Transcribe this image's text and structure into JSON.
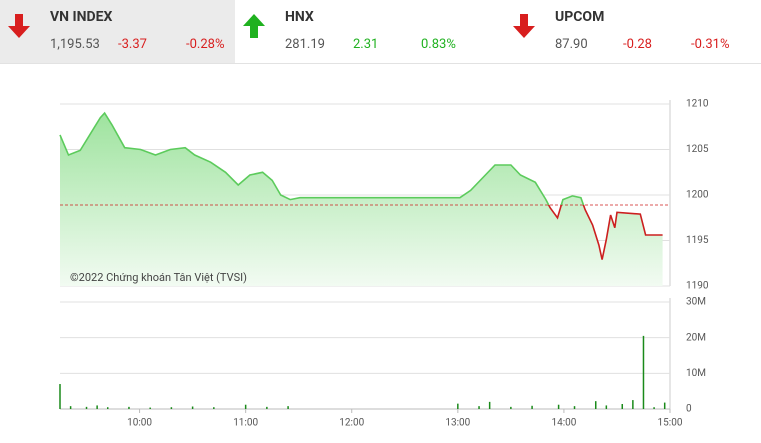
{
  "header": {
    "items": [
      {
        "name": "VN INDEX",
        "price": "1,195.53",
        "change": "-3.37",
        "percent": "-0.28%",
        "direction": "down"
      },
      {
        "name": "HNX",
        "price": "281.19",
        "change": "2.31",
        "percent": "0.83%",
        "direction": "up"
      },
      {
        "name": "UPCOM",
        "price": "87.90",
        "change": "-0.28",
        "percent": "-0.31%",
        "direction": "down"
      }
    ]
  },
  "chart_data": [
    {
      "type": "line",
      "annotation": "©2022 Chứng khoán Tân Việt (TVSI)",
      "reference": 1198.9,
      "x": [
        9.25,
        9.33,
        9.44,
        9.53,
        9.63,
        9.67,
        9.74,
        9.86,
        10.01,
        10.15,
        10.29,
        10.43,
        10.52,
        10.67,
        10.81,
        10.93,
        11.04,
        11.16,
        11.25,
        11.33,
        11.42,
        11.51,
        11.99,
        12.46,
        13.02,
        13.12,
        13.26,
        13.35,
        13.5,
        13.59,
        13.73,
        13.83,
        13.87,
        13.94,
        13.99,
        14.08,
        14.16,
        14.2,
        14.27,
        14.33,
        14.36,
        14.4,
        14.44,
        14.48,
        14.5,
        14.72,
        14.77,
        14.93
      ],
      "values": [
        1206.6,
        1204.4,
        1204.9,
        1206.6,
        1208.5,
        1209.0,
        1207.7,
        1205.2,
        1205.0,
        1204.4,
        1205.0,
        1205.2,
        1204.4,
        1203.6,
        1202.5,
        1201.1,
        1202.2,
        1202.5,
        1201.6,
        1200.0,
        1199.5,
        1199.7,
        1199.7,
        1199.7,
        1199.7,
        1200.5,
        1202.2,
        1203.3,
        1203.3,
        1202.2,
        1201.4,
        1199.5,
        1198.6,
        1197.5,
        1199.5,
        1199.9,
        1199.7,
        1198.4,
        1196.7,
        1194.5,
        1192.9,
        1195.1,
        1197.8,
        1196.4,
        1198.1,
        1197.9,
        1195.6,
        1195.6
      ],
      "color": "#5ccb5c",
      "down_color": "#cc1f1f",
      "xlim": [
        9.25,
        15
      ],
      "ylim": [
        1190,
        1210
      ],
      "yticks": [
        1190,
        1195,
        1200,
        1205,
        1210
      ],
      "grid": true
    },
    {
      "type": "bar",
      "color": "#1a8a1a",
      "x": [
        9.25,
        9.35,
        9.5,
        9.6,
        9.7,
        9.9,
        10.1,
        10.3,
        10.5,
        10.7,
        11.0,
        11.2,
        11.4,
        13.0,
        13.2,
        13.3,
        13.5,
        13.7,
        13.95,
        14.1,
        14.3,
        14.4,
        14.55,
        14.65,
        14.75,
        14.85,
        14.95
      ],
      "values": [
        7,
        0.8,
        0.6,
        1.0,
        0.5,
        0.6,
        0.4,
        0.5,
        0.7,
        0.5,
        1.2,
        0.6,
        0.8,
        1.5,
        0.8,
        2.0,
        0.6,
        0.9,
        1.2,
        0.8,
        2.2,
        1.0,
        1.4,
        2.5,
        20.5,
        0.5,
        1.8
      ],
      "xlim": [
        9.25,
        15
      ],
      "xticks": [
        {
          "value": 10,
          "label": "10:00"
        },
        {
          "value": 11,
          "label": "11:00"
        },
        {
          "value": 12,
          "label": "12:00"
        },
        {
          "value": 13,
          "label": "13:00"
        },
        {
          "value": 14,
          "label": "14:00"
        },
        {
          "value": 15,
          "label": "15:00"
        }
      ],
      "ylim": [
        0,
        30
      ],
      "yticks": [
        0,
        {
          "value": 10,
          "label": "10M"
        },
        {
          "value": 20,
          "label": "20M"
        },
        {
          "value": 30,
          "label": "30M"
        }
      ],
      "grid": true
    }
  ]
}
